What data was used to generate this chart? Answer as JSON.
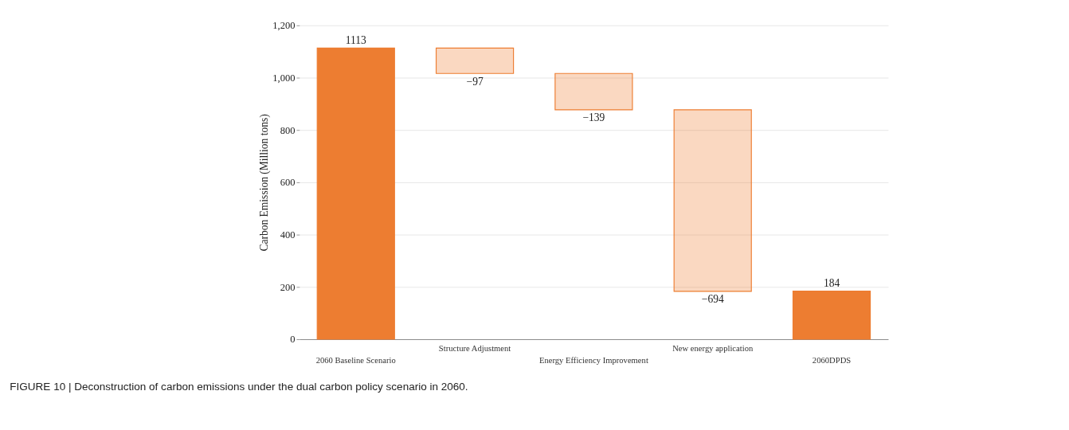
{
  "chart_data": {
    "type": "bar",
    "title": "FIGURE 10 | Deconstruction of carbon emissions under the dual carbon policy scenario in 2060.",
    "ylabel": "Carbon Emission (Million tons)",
    "categories": [
      "2060 Baseline Scenario",
      "Structure Adjustment",
      "Energy Efficiency Improvement",
      "New energy application",
      "2060DPDS"
    ],
    "values": [
      1113,
      -97,
      -139,
      -694,
      184
    ],
    "base": [
      0,
      1113,
      1016,
      877,
      0
    ],
    "colors": [
      "#ed7d31",
      "#ed7d31",
      "#ed7d31",
      "#ed7d31",
      "#ed7d31"
    ],
    "ylim": [
      0,
      1200
    ],
    "yticks": [
      0,
      200,
      400,
      600,
      800,
      {
        "value": 1000,
        "label": "1,000"
      },
      {
        "value": 1200,
        "label": "1,200"
      }
    ],
    "grid": "y",
    "data_labels": true
  }
}
